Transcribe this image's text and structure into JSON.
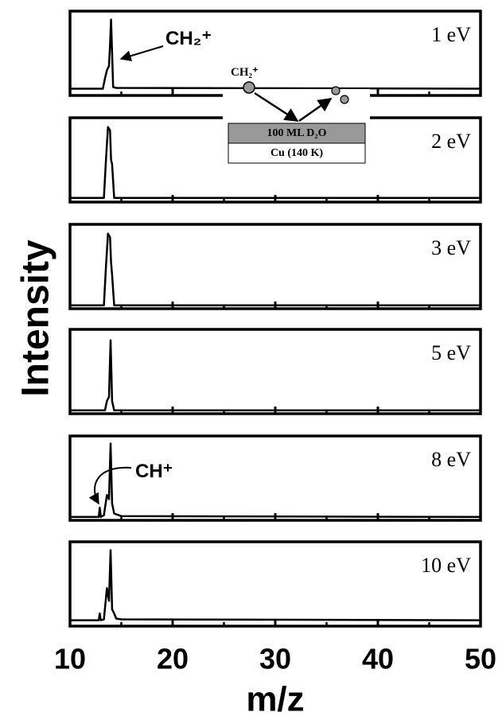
{
  "chart_data": [
    {
      "type": "line",
      "label": "1 eV",
      "annotation": "CH₂⁺",
      "inset": {
        "ion": "CH₂⁺",
        "layer": "100 ML D₂O",
        "substrate": "Cu (140 K)"
      },
      "x": [
        10,
        13.2,
        13.4,
        13.6,
        13.8,
        13.9,
        14.0,
        14.1,
        14.2,
        14.5,
        50
      ],
      "values": [
        0.08,
        0.08,
        0.2,
        0.3,
        0.35,
        0.6,
        0.9,
        0.5,
        0.1,
        0.09,
        0.08
      ],
      "color": "#000000",
      "xlim": [
        10,
        50
      ],
      "ylim": [
        0,
        1
      ],
      "xticks": [
        10,
        20,
        30,
        40,
        50
      ],
      "xminor": [
        15,
        25,
        35,
        45
      ]
    },
    {
      "type": "line",
      "label": "2 eV",
      "x": [
        10,
        13.3,
        13.5,
        13.7,
        13.9,
        14.0,
        14.1,
        14.3,
        50
      ],
      "values": [
        0.05,
        0.05,
        0.5,
        0.89,
        0.85,
        0.5,
        0.45,
        0.05,
        0.05
      ],
      "color": "#000000",
      "xlim": [
        10,
        50
      ],
      "ylim": [
        0,
        1
      ],
      "xticks": [
        10,
        20,
        30,
        40,
        50
      ],
      "xminor": [
        15,
        25,
        35,
        45
      ]
    },
    {
      "type": "line",
      "label": "3 eV",
      "x": [
        10,
        13.3,
        13.5,
        13.7,
        13.9,
        14.0,
        14.1,
        14.3,
        50
      ],
      "values": [
        0.04,
        0.04,
        0.5,
        0.89,
        0.85,
        0.55,
        0.4,
        0.04,
        0.04
      ],
      "color": "#000000",
      "xlim": [
        10,
        50
      ],
      "ylim": [
        0,
        1
      ],
      "xticks": [
        10,
        20,
        30,
        40,
        50
      ],
      "xminor": [
        15,
        25,
        35,
        45
      ]
    },
    {
      "type": "line",
      "label": "5 eV",
      "x": [
        10,
        13.4,
        13.6,
        13.8,
        13.95,
        14.1,
        14.3,
        50
      ],
      "values": [
        0.04,
        0.04,
        0.15,
        0.2,
        0.87,
        0.15,
        0.04,
        0.04
      ],
      "color": "#000000",
      "xlim": [
        10,
        50
      ],
      "ylim": [
        0,
        1
      ],
      "xticks": [
        10,
        20,
        30,
        40,
        50
      ],
      "xminor": [
        15,
        25,
        35,
        45
      ]
    },
    {
      "type": "line",
      "label": "8 eV",
      "annotation": "CH⁺",
      "x": [
        10,
        12.8,
        12.9,
        13.0,
        13.3,
        13.6,
        13.8,
        13.95,
        14.1,
        14.3,
        15,
        50
      ],
      "values": [
        0.04,
        0.04,
        0.15,
        0.04,
        0.06,
        0.3,
        0.25,
        0.91,
        0.2,
        0.08,
        0.05,
        0.04
      ],
      "color": "#000000",
      "xlim": [
        10,
        50
      ],
      "ylim": [
        0,
        1
      ],
      "xticks": [
        10,
        20,
        30,
        40,
        50
      ],
      "xminor": [
        15,
        25,
        35,
        45
      ]
    },
    {
      "type": "line",
      "label": "10 eV",
      "xlabel": "m/z",
      "ylabel": "Intensity",
      "x": [
        10,
        12.8,
        12.9,
        13.0,
        13.3,
        13.6,
        13.8,
        13.95,
        14.1,
        14.3,
        14.5,
        15,
        50
      ],
      "values": [
        0.07,
        0.07,
        0.15,
        0.07,
        0.08,
        0.45,
        0.3,
        0.9,
        0.2,
        0.15,
        0.09,
        0.08,
        0.07
      ],
      "color": "#000000",
      "xlim": [
        10,
        50
      ],
      "ylim": [
        0,
        1
      ],
      "xticks": [
        10,
        20,
        30,
        40,
        50
      ],
      "xminor": [
        15,
        25,
        35,
        45
      ]
    }
  ]
}
